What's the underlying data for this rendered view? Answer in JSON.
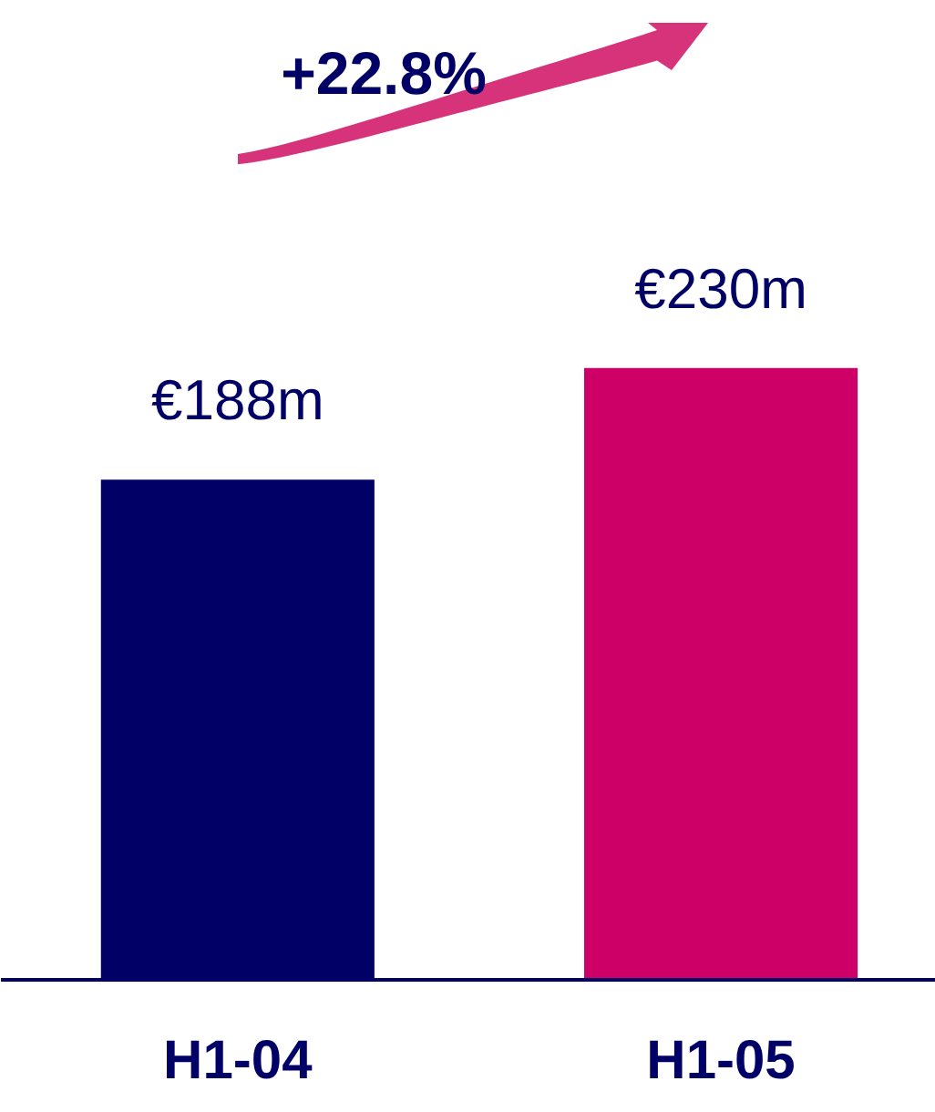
{
  "chart_data": {
    "type": "bar",
    "categories": [
      "H1-04",
      "H1-05"
    ],
    "values": [
      188,
      230
    ],
    "colors": [
      "#000066",
      "#cc0066"
    ],
    "value_labels": [
      "€188m",
      "€230m"
    ],
    "annotations": [
      "+22.8%"
    ]
  }
}
